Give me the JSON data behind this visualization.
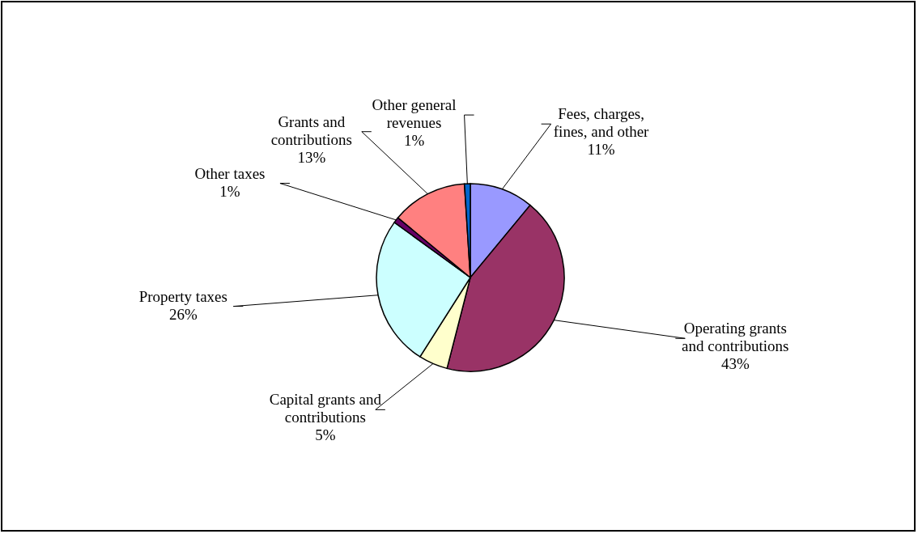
{
  "chart_data": {
    "type": "pie",
    "categories": [
      "Fees, charges, fines, and other",
      "Operating grants and contributions",
      "Capital grants and contributions",
      "Property taxes",
      "Other taxes",
      "Grants and contributions",
      "Other general revenues"
    ],
    "values": [
      11,
      43,
      5,
      26,
      1,
      13,
      1
    ],
    "value_labels": [
      "11%",
      "43%",
      "5%",
      "26%",
      "1%",
      "13%",
      "1%"
    ],
    "colors": [
      "#9999ff",
      "#993366",
      "#ffffcc",
      "#ccffff",
      "#660066",
      "#ff8080",
      "#0066cc"
    ]
  }
}
